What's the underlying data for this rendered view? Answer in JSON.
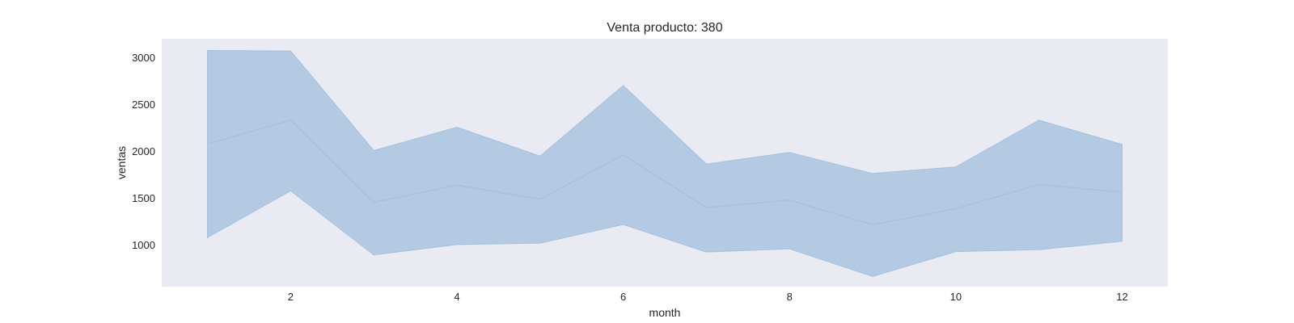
{
  "chart_data": {
    "type": "line",
    "title": "Venta producto: 380",
    "xlabel": "month",
    "ylabel": "ventas",
    "x": [
      1,
      2,
      3,
      4,
      5,
      6,
      7,
      8,
      9,
      10,
      11,
      12
    ],
    "series": [
      {
        "values": [
          2075,
          2330,
          1450,
          1635,
          1485,
          1960,
          1395,
          1475,
          1210,
          1385,
          1640,
          1560
        ],
        "ci_lower": [
          1075,
          1575,
          890,
          1000,
          1015,
          1215,
          920,
          955,
          660,
          925,
          945,
          1035
        ],
        "ci_upper": [
          3075,
          3070,
          2005,
          2255,
          1945,
          2700,
          1860,
          1985,
          1760,
          1830,
          2330,
          2070
        ]
      }
    ],
    "xticks": [
      2,
      4,
      6,
      8,
      10,
      12
    ],
    "yticks": [
      1000,
      1500,
      2000,
      2500,
      3000
    ],
    "xlim": [
      0.45,
      12.55
    ],
    "ylim": [
      550,
      3200
    ],
    "grid": false,
    "colors": {
      "line": "#a5c2de",
      "band": "#b3cae2",
      "background": "#eaeaf2"
    }
  }
}
